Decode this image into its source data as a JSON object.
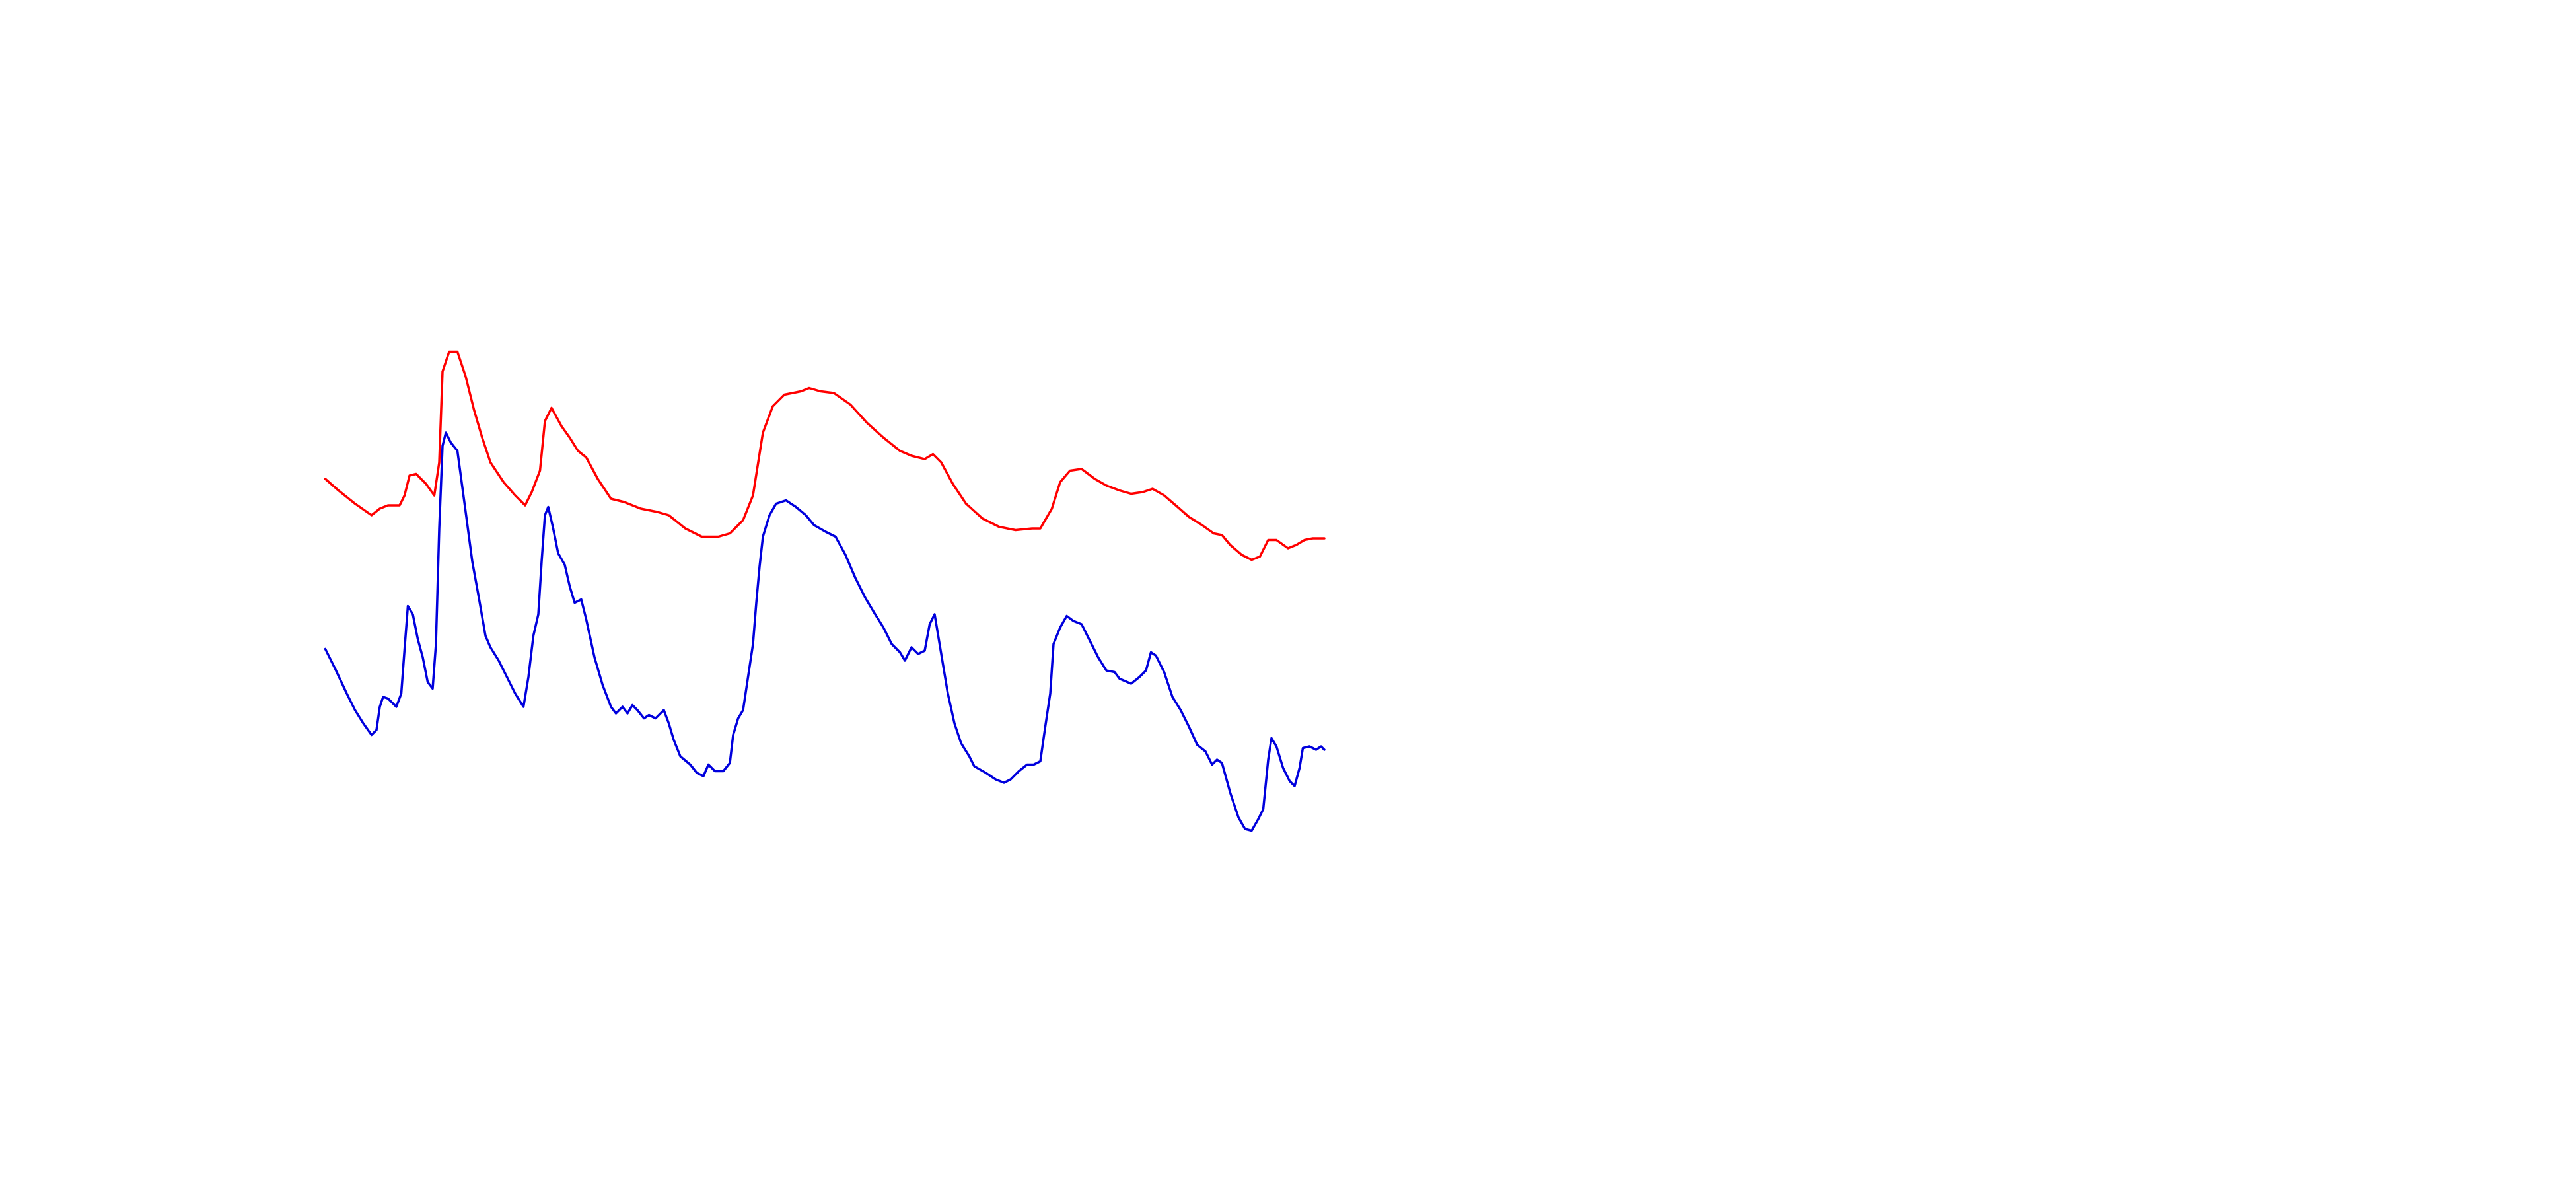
{
  "chart_data": {
    "type": "line",
    "xlim": [
      197,
      802
    ],
    "ylim": [
      0,
      720
    ],
    "series": [
      {
        "color": "#ff0000",
        "x": [
          197,
          205,
          215,
          225,
          230,
          235,
          242,
          245,
          248,
          252,
          258,
          263,
          266,
          268,
          272,
          277,
          282,
          287,
          292,
          297,
          305,
          312,
          318,
          322,
          327,
          330,
          334,
          340,
          345,
          350,
          355,
          362,
          370,
          378,
          388,
          398,
          405,
          415,
          425,
          435,
          442,
          450,
          456,
          462,
          468,
          475,
          485,
          490,
          497,
          505,
          515,
          525,
          535,
          545,
          552,
          560,
          565,
          570,
          577,
          585,
          595,
          605,
          615,
          625,
          630,
          637,
          642,
          648,
          655,
          663,
          670,
          678,
          685,
          692,
          698,
          705,
          712,
          720,
          728,
          735,
          740,
          745,
          752,
          758,
          763,
          768,
          773,
          780,
          785,
          790,
          795,
          802
        ],
        "values": [
          430,
          423,
          415,
          408,
          412,
          414,
          414,
          420,
          432,
          433,
          427,
          420,
          440,
          495,
          507,
          507,
          492,
          472,
          455,
          440,
          428,
          420,
          414,
          422,
          435,
          465,
          473,
          462,
          455,
          447,
          443,
          430,
          418,
          416,
          412,
          410,
          408,
          400,
          395,
          395,
          397,
          405,
          420,
          458,
          474,
          481,
          483,
          485,
          483,
          482,
          475,
          464,
          455,
          447,
          444,
          442,
          445,
          440,
          427,
          415,
          406,
          401,
          399,
          400,
          400,
          412,
          428,
          435,
          436,
          430,
          426,
          423,
          421,
          422,
          424,
          420,
          414,
          407,
          402,
          397,
          396,
          390,
          384,
          381,
          383,
          393,
          393,
          388,
          390,
          393,
          394,
          394
        ]
      },
      {
        "color": "#0000dd",
        "x": [
          197,
          203,
          210,
          215,
          220,
          225,
          228,
          230,
          232,
          235,
          240,
          243,
          245,
          247,
          250,
          253,
          256,
          259,
          262,
          264,
          266,
          268,
          270,
          273,
          277,
          282,
          286,
          290,
          294,
          297,
          302,
          307,
          312,
          317,
          320,
          323,
          326,
          328,
          330,
          332,
          335,
          338,
          342,
          345,
          348,
          352,
          355,
          360,
          365,
          370,
          373,
          377,
          380,
          383,
          386,
          390,
          393,
          397,
          402,
          405,
          408,
          412,
          418,
          422,
          426,
          429,
          433,
          438,
          442,
          444,
          447,
          450,
          453,
          456,
          458,
          460,
          462,
          466,
          470,
          476,
          482,
          488,
          493,
          500,
          506,
          512,
          518,
          524,
          530,
          535,
          540,
          545,
          548,
          552,
          556,
          560,
          563,
          566,
          570,
          574,
          578,
          582,
          587,
          590,
          597,
          603,
          608,
          612,
          617,
          622,
          626,
          630,
          633,
          636,
          638,
          642,
          646,
          650,
          655,
          660,
          665,
          670,
          675,
          678,
          685,
          690,
          694,
          697,
          700,
          705,
          710,
          715,
          720,
          725,
          730,
          734,
          737,
          740,
          745,
          750,
          754,
          758,
          762,
          765,
          768,
          770,
          773,
          777,
          781,
          784,
          787,
          789,
          793,
          797,
          800,
          802
        ],
        "values": [
          327,
          315,
          300,
          290,
          282,
          275,
          278,
          292,
          298,
          297,
          292,
          300,
          327,
          353,
          348,
          333,
          322,
          307,
          303,
          330,
          400,
          450,
          458,
          452,
          447,
          410,
          380,
          358,
          335,
          328,
          320,
          310,
          300,
          292,
          310,
          335,
          348,
          380,
          408,
          413,
          400,
          385,
          378,
          365,
          355,
          357,
          345,
          322,
          305,
          292,
          288,
          292,
          288,
          293,
          290,
          285,
          287,
          285,
          290,
          282,
          272,
          262,
          257,
          252,
          250,
          257,
          253,
          253,
          258,
          275,
          285,
          290,
          310,
          330,
          355,
          377,
          395,
          408,
          415,
          417,
          413,
          408,
          402,
          398,
          395,
          384,
          370,
          358,
          348,
          340,
          330,
          325,
          320,
          328,
          324,
          326,
          342,
          348,
          324,
          300,
          282,
          270,
          262,
          256,
          252,
          248,
          246,
          248,
          253,
          257,
          257,
          259,
          280,
          300,
          330,
          340,
          347,
          344,
          342,
          332,
          322,
          314,
          313,
          309,
          306,
          310,
          314,
          325,
          323,
          313,
          298,
          290,
          280,
          269,
          265,
          257,
          260,
          258,
          240,
          225,
          218,
          217,
          224,
          230,
          260,
          273,
          268,
          255,
          247,
          244,
          255,
          267,
          268,
          266,
          268,
          266
        ]
      }
    ]
  }
}
